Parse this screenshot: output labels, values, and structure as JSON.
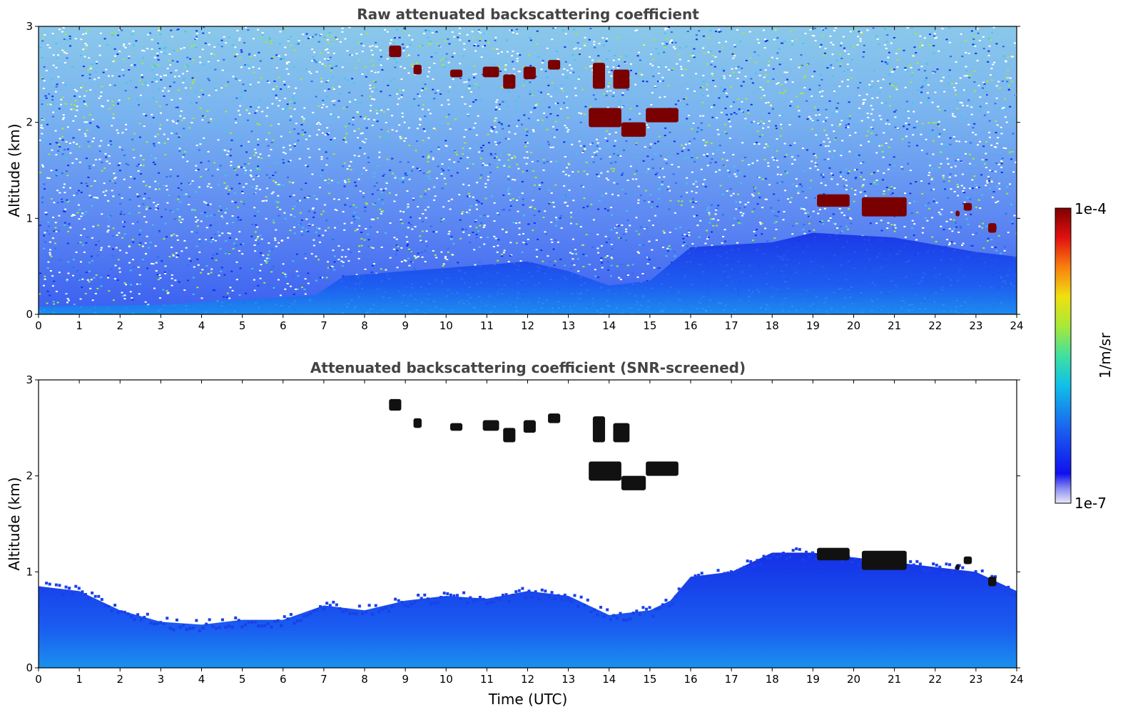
{
  "chart_data": [
    {
      "type": "heatmap",
      "title": "Raw attenuated backscattering coefficient",
      "xlabel": "",
      "ylabel": "Altitude (km)",
      "xlim": [
        0,
        24
      ],
      "ylim": [
        0,
        3
      ],
      "x_ticks": [
        "0",
        "1",
        "2",
        "3",
        "4",
        "5",
        "6",
        "7",
        "8",
        "9",
        "10",
        "11",
        "12",
        "13",
        "14",
        "15",
        "16",
        "17",
        "18",
        "19",
        "20",
        "21",
        "22",
        "23",
        "24"
      ],
      "y_ticks": [
        "0",
        "1",
        "2",
        "3"
      ],
      "boundary_layer": [
        {
          "t": 0,
          "h": 0.08
        },
        {
          "t": 3,
          "h": 0.1
        },
        {
          "t": 6.8,
          "h": 0.2
        },
        {
          "t": 7.5,
          "h": 0.4
        },
        {
          "t": 9,
          "h": 0.45
        },
        {
          "t": 12,
          "h": 0.55
        },
        {
          "t": 13,
          "h": 0.45
        },
        {
          "t": 14,
          "h": 0.3
        },
        {
          "t": 15,
          "h": 0.35
        },
        {
          "t": 16,
          "h": 0.7
        },
        {
          "t": 18,
          "h": 0.75
        },
        {
          "t": 19,
          "h": 0.85
        },
        {
          "t": 21,
          "h": 0.8
        },
        {
          "t": 23,
          "h": 0.65
        },
        {
          "t": 24,
          "h": 0.6
        }
      ],
      "cloud_layers": [
        {
          "t_start": 8.6,
          "t_end": 8.9,
          "base": 2.68,
          "top": 2.8
        },
        {
          "t_start": 9.2,
          "t_end": 9.4,
          "base": 2.5,
          "top": 2.6
        },
        {
          "t_start": 10.1,
          "t_end": 10.4,
          "base": 2.47,
          "top": 2.55
        },
        {
          "t_start": 10.9,
          "t_end": 11.3,
          "base": 2.47,
          "top": 2.58
        },
        {
          "t_start": 11.4,
          "t_end": 11.7,
          "base": 2.35,
          "top": 2.5
        },
        {
          "t_start": 11.9,
          "t_end": 12.2,
          "base": 2.45,
          "top": 2.58
        },
        {
          "t_start": 12.5,
          "t_end": 12.8,
          "base": 2.55,
          "top": 2.65
        },
        {
          "t_start": 13.6,
          "t_end": 13.9,
          "base": 2.35,
          "top": 2.62
        },
        {
          "t_start": 14.1,
          "t_end": 14.5,
          "base": 2.35,
          "top": 2.55
        },
        {
          "t_start": 13.5,
          "t_end": 14.3,
          "base": 1.95,
          "top": 2.15
        },
        {
          "t_start": 14.3,
          "t_end": 14.9,
          "base": 1.85,
          "top": 2.0
        },
        {
          "t_start": 14.9,
          "t_end": 15.7,
          "base": 2.0,
          "top": 2.15
        },
        {
          "t_start": 19.1,
          "t_end": 19.9,
          "base": 1.12,
          "top": 1.25
        },
        {
          "t_start": 20.2,
          "t_end": 21.3,
          "base": 1.02,
          "top": 1.22
        },
        {
          "t_start": 22.5,
          "t_end": 22.6,
          "base": 1.02,
          "top": 1.08
        },
        {
          "t_start": 22.7,
          "t_end": 22.9,
          "base": 1.08,
          "top": 1.16
        },
        {
          "t_start": 23.3,
          "t_end": 23.5,
          "base": 0.85,
          "top": 0.95
        }
      ]
    },
    {
      "type": "heatmap",
      "title": "Attenuated backscattering coefficient (SNR-screened)",
      "xlabel": "Time (UTC)",
      "ylabel": "Altitude (km)",
      "xlim": [
        0,
        24
      ],
      "ylim": [
        0,
        3
      ],
      "x_ticks": [
        "0",
        "1",
        "2",
        "3",
        "4",
        "5",
        "6",
        "7",
        "8",
        "9",
        "10",
        "11",
        "12",
        "13",
        "14",
        "15",
        "16",
        "17",
        "18",
        "19",
        "20",
        "21",
        "22",
        "23",
        "24"
      ],
      "y_ticks": [
        "0",
        "1",
        "2",
        "3"
      ],
      "boundary_layer": [
        {
          "t": 0,
          "h": 0.85
        },
        {
          "t": 1,
          "h": 0.8
        },
        {
          "t": 2,
          "h": 0.6
        },
        {
          "t": 3,
          "h": 0.48
        },
        {
          "t": 4,
          "h": 0.45
        },
        {
          "t": 5,
          "h": 0.5
        },
        {
          "t": 6,
          "h": 0.5
        },
        {
          "t": 7,
          "h": 0.65
        },
        {
          "t": 8,
          "h": 0.6
        },
        {
          "t": 9,
          "h": 0.7
        },
        {
          "t": 10,
          "h": 0.75
        },
        {
          "t": 11,
          "h": 0.72
        },
        {
          "t": 12,
          "h": 0.8
        },
        {
          "t": 13,
          "h": 0.75
        },
        {
          "t": 13.5,
          "h": 0.65
        },
        {
          "t": 14,
          "h": 0.55
        },
        {
          "t": 15,
          "h": 0.6
        },
        {
          "t": 15.5,
          "h": 0.7
        },
        {
          "t": 16,
          "h": 0.95
        },
        {
          "t": 17,
          "h": 1.0
        },
        {
          "t": 18,
          "h": 1.2
        },
        {
          "t": 19,
          "h": 1.2
        },
        {
          "t": 20,
          "h": 1.15
        },
        {
          "t": 21,
          "h": 1.1
        },
        {
          "t": 22,
          "h": 1.05
        },
        {
          "t": 23,
          "h": 1.0
        },
        {
          "t": 24,
          "h": 0.8
        }
      ],
      "cloud_layers": [
        {
          "t_start": 8.6,
          "t_end": 8.9,
          "base": 2.68,
          "top": 2.8
        },
        {
          "t_start": 9.2,
          "t_end": 9.4,
          "base": 2.5,
          "top": 2.6
        },
        {
          "t_start": 10.1,
          "t_end": 10.4,
          "base": 2.47,
          "top": 2.55
        },
        {
          "t_start": 10.9,
          "t_end": 11.3,
          "base": 2.47,
          "top": 2.58
        },
        {
          "t_start": 11.4,
          "t_end": 11.7,
          "base": 2.35,
          "top": 2.5
        },
        {
          "t_start": 11.9,
          "t_end": 12.2,
          "base": 2.45,
          "top": 2.58
        },
        {
          "t_start": 12.5,
          "t_end": 12.8,
          "base": 2.55,
          "top": 2.65
        },
        {
          "t_start": 13.6,
          "t_end": 13.9,
          "base": 2.35,
          "top": 2.62
        },
        {
          "t_start": 14.1,
          "t_end": 14.5,
          "base": 2.35,
          "top": 2.55
        },
        {
          "t_start": 13.5,
          "t_end": 14.3,
          "base": 1.95,
          "top": 2.15
        },
        {
          "t_start": 14.3,
          "t_end": 14.9,
          "base": 1.85,
          "top": 2.0
        },
        {
          "t_start": 14.9,
          "t_end": 15.7,
          "base": 2.0,
          "top": 2.15
        },
        {
          "t_start": 19.1,
          "t_end": 19.9,
          "base": 1.12,
          "top": 1.25
        },
        {
          "t_start": 20.2,
          "t_end": 21.3,
          "base": 1.02,
          "top": 1.22
        },
        {
          "t_start": 22.5,
          "t_end": 22.6,
          "base": 1.02,
          "top": 1.08
        },
        {
          "t_start": 22.7,
          "t_end": 22.9,
          "base": 1.08,
          "top": 1.16
        },
        {
          "t_start": 23.3,
          "t_end": 23.5,
          "base": 0.85,
          "top": 0.95
        }
      ]
    }
  ],
  "colorbar": {
    "max_label": "1e-4",
    "min_label": "1e-7",
    "unit_label": "1/m/sr",
    "scale": "log",
    "range": [
      1e-07,
      0.0001
    ]
  },
  "colors": {
    "cloud": "#7a0000",
    "cloud_core_screened": "#111111",
    "boundary_layer": "#1747e8",
    "boundary_layer_bright": "#1ea0ea",
    "noise": "#3a66ee"
  }
}
